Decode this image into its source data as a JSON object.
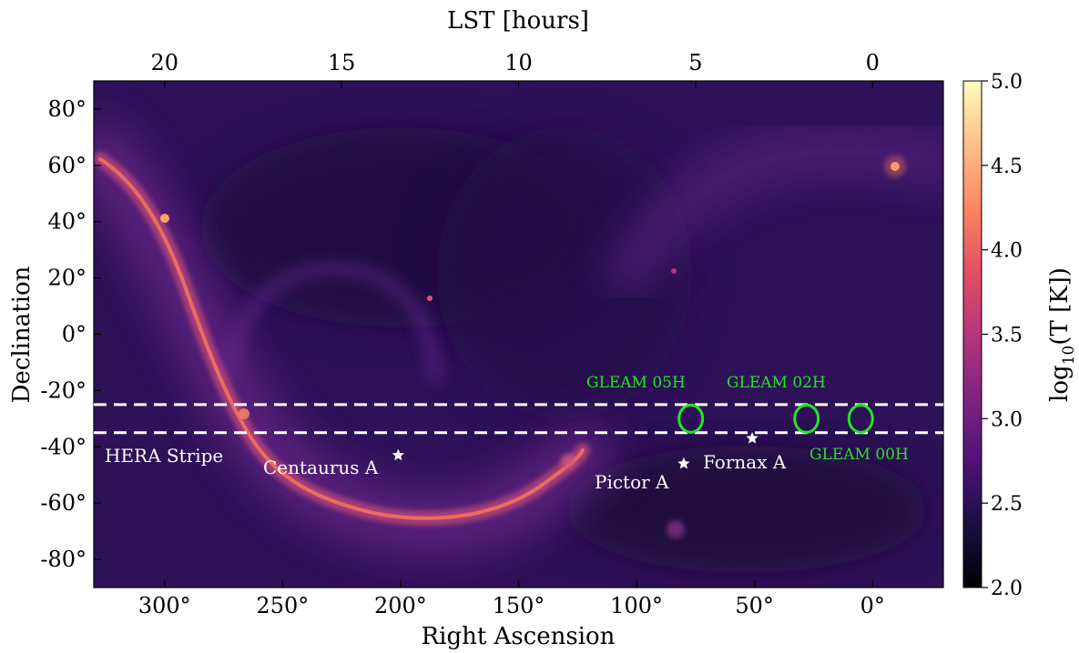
{
  "chart_data": {
    "type": "heatmap",
    "title": "",
    "xlabel": "Right Ascension",
    "ylabel": "Declination",
    "x2label": "LST [hours]",
    "xlim": [
      330,
      -30
    ],
    "ylim": [
      -90,
      90
    ],
    "x_ticks": [
      {
        "value": 300,
        "label": "300°"
      },
      {
        "value": 250,
        "label": "250°"
      },
      {
        "value": 200,
        "label": "200°"
      },
      {
        "value": 150,
        "label": "150°"
      },
      {
        "value": 100,
        "label": "100°"
      },
      {
        "value": 50,
        "label": "50°"
      },
      {
        "value": 0,
        "label": "0°"
      }
    ],
    "y_ticks": [
      {
        "value": 80,
        "label": "80°"
      },
      {
        "value": 60,
        "label": "60°"
      },
      {
        "value": 40,
        "label": "40°"
      },
      {
        "value": 20,
        "label": "20°"
      },
      {
        "value": 0,
        "label": "0°"
      },
      {
        "value": -20,
        "label": "-20°"
      },
      {
        "value": -40,
        "label": "-40°"
      },
      {
        "value": -60,
        "label": "-60°"
      },
      {
        "value": -80,
        "label": "-80°"
      }
    ],
    "lst_ticks": [
      {
        "ra": 300,
        "label": "20"
      },
      {
        "ra": 225,
        "label": "15"
      },
      {
        "ra": 150,
        "label": "10"
      },
      {
        "ra": 75,
        "label": "5"
      },
      {
        "ra": 0,
        "label": "0"
      }
    ],
    "colorbar": {
      "label": "log10(T [K])",
      "label_main": "log",
      "label_sub": "10",
      "label_rest": "(T [K])",
      "range": [
        2.0,
        5.0
      ],
      "ticks": [
        "2.0",
        "2.5",
        "3.0",
        "3.5",
        "4.0",
        "4.5",
        "5.0"
      ],
      "tick_values": [
        2.0,
        2.5,
        3.0,
        3.5,
        4.0,
        4.5,
        5.0
      ],
      "colormap": "magma"
    },
    "stripe": {
      "label": "HERA Stripe",
      "dec_lines": [
        -25,
        -35
      ]
    },
    "sources": [
      {
        "name": "Centaurus A",
        "ra": 201,
        "dec": -43
      },
      {
        "name": "Pictor A",
        "ra": 80,
        "dec": -46
      },
      {
        "name": "Fornax A",
        "ra": 51,
        "dec": -37
      }
    ],
    "fields": [
      {
        "name": "GLEAM 05H",
        "ra": 77,
        "dec": -30
      },
      {
        "name": "GLEAM 02H",
        "ra": 28,
        "dec": -30
      },
      {
        "name": "GLEAM 00H",
        "ra": 5,
        "dec": -30
      }
    ],
    "colors": {
      "field_outline": "#22e622",
      "stripe_line": "#ffffff",
      "source_marker": "#ffffff",
      "background_low": "#2a1050",
      "galactic_plane": "#f4745a"
    }
  }
}
